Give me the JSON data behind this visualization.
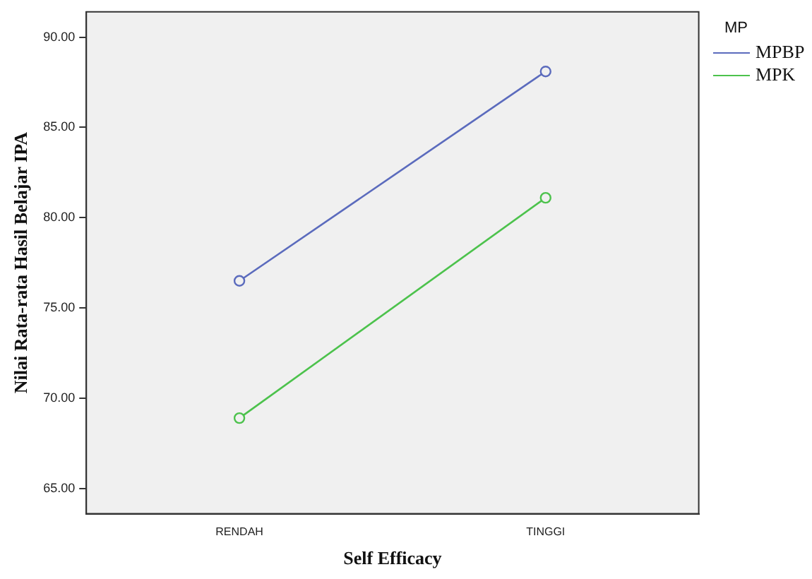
{
  "chart_data": {
    "type": "line",
    "xlabel": "Self Efficacy",
    "ylabel": "Nilai Rata-rata Hasil Belajar IPA",
    "legend_title": "MP",
    "categories": [
      "RENDAH",
      "TINGGI"
    ],
    "series": [
      {
        "name": "MPBP",
        "color": "#5b6bbd",
        "values": [
          76.5,
          88.1
        ]
      },
      {
        "name": "MPK",
        "color": "#4cc24c",
        "values": [
          68.9,
          81.1
        ]
      }
    ],
    "ylim": [
      63.6,
      91.4
    ],
    "yticks": [
      {
        "value": 65,
        "label": "65.00"
      },
      {
        "value": 70,
        "label": "70.00"
      },
      {
        "value": 75,
        "label": "75.00"
      },
      {
        "value": 80,
        "label": "80.00"
      },
      {
        "value": 85,
        "label": "85.00"
      },
      {
        "value": 90,
        "label": "90.00"
      }
    ],
    "grid": false,
    "legend": "top right",
    "marker": "circle",
    "line_style": "solid"
  }
}
